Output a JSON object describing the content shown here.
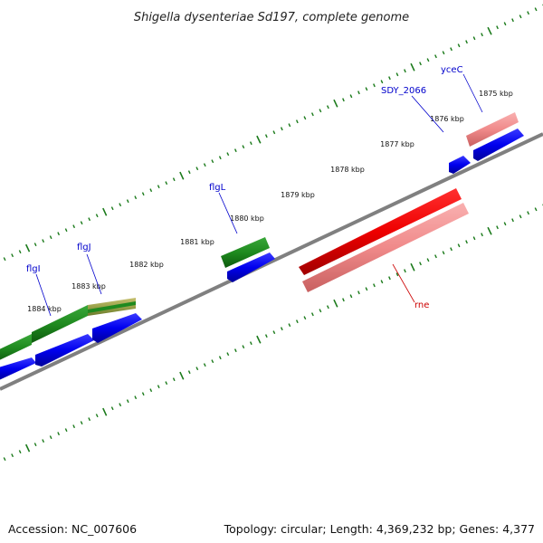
{
  "title": "Shigella dysenteriae Sd197, complete genome",
  "footer": {
    "accession": "Accession: NC_007606",
    "summary": "Topology: circular; Length: 4,369,232 bp; Genes: 4,377"
  },
  "ticks": [
    {
      "label": "1875 kbp",
      "kbp": 1875
    },
    {
      "label": "1876 kbp",
      "kbp": 1876
    },
    {
      "label": "1877 kbp",
      "kbp": 1877
    },
    {
      "label": "1878 kbp",
      "kbp": 1878
    },
    {
      "label": "1879 kbp",
      "kbp": 1879
    },
    {
      "label": "1880 kbp",
      "kbp": 1880
    },
    {
      "label": "1881 kbp",
      "kbp": 1881
    },
    {
      "label": "1882 kbp",
      "kbp": 1882
    },
    {
      "label": "1883 kbp",
      "kbp": 1883
    },
    {
      "label": "1884 kbp",
      "kbp": 1884
    }
  ],
  "gene_labels": [
    {
      "name": "flgI",
      "color": "#0000cc"
    },
    {
      "name": "flgJ",
      "color": "#0000cc"
    },
    {
      "name": "flgL",
      "color": "#0000cc"
    },
    {
      "name": "SDY_2066",
      "color": "#0000cc"
    },
    {
      "name": "yceC",
      "color": "#0000cc"
    },
    {
      "name": "rne",
      "color": "#cc0000"
    }
  ],
  "colors": {
    "backbone": "#808080",
    "tick": "#1a7a1a",
    "cds": "#0000ee",
    "gene_green": "#1f8a1f",
    "gene_green_light": "#9aa24a",
    "rne_red": "#ee0000",
    "rne_pink": "#f08a8a",
    "yceC_pink": "#f07a7a"
  }
}
